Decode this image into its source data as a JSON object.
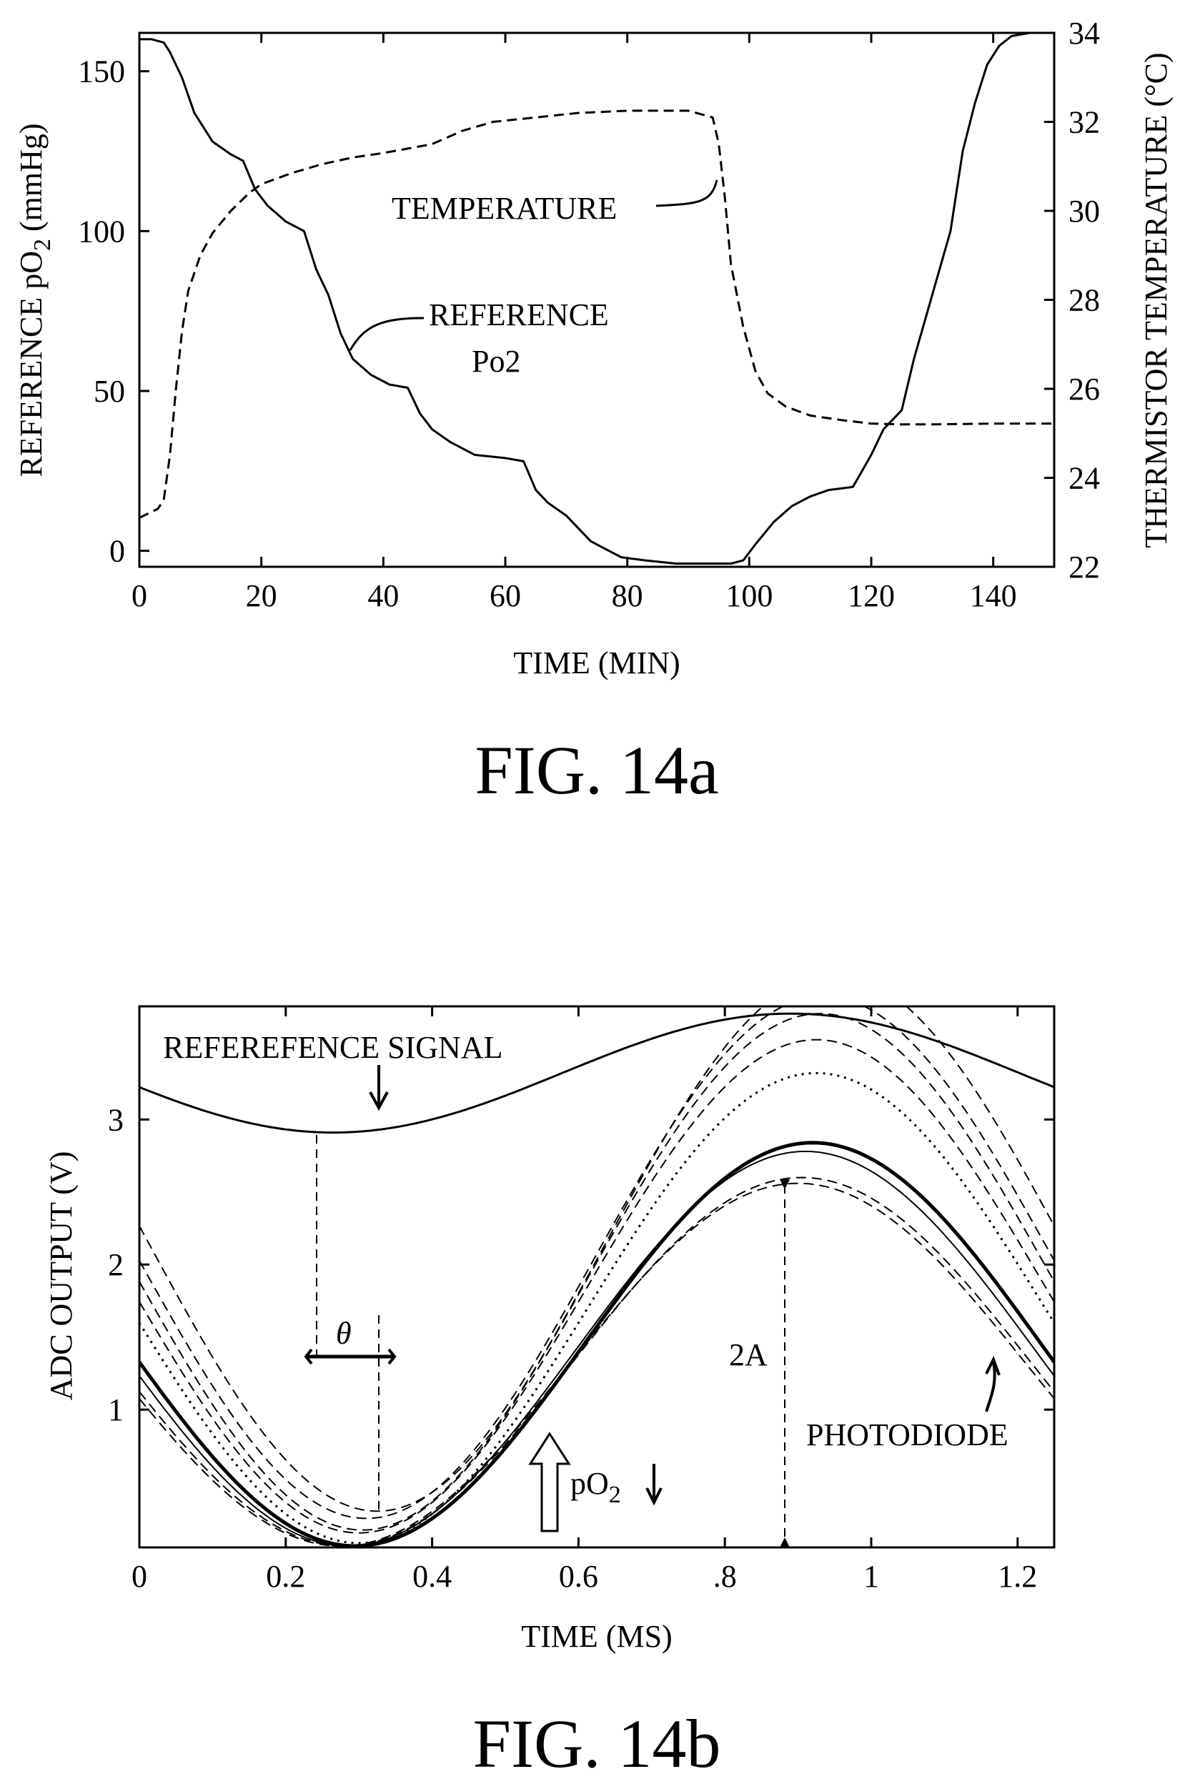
{
  "chart_data": [
    {
      "type": "line",
      "caption": "FIG. 14a",
      "xlabel": "TIME (MIN)",
      "ylabel": "REFERENCE pO",
      "ylabel_sub": "2",
      "ylabel_unit": "(mmHg)",
      "y2label": "THERMISTOR TEMPERATURE (°C)",
      "xlim": [
        0,
        150
      ],
      "ylim": [
        -5,
        162
      ],
      "y2lim": [
        22,
        34
      ],
      "xticks": [
        0,
        20,
        40,
        60,
        80,
        100,
        120,
        140
      ],
      "xtick_labels": [
        "0",
        "20",
        "40",
        "60",
        "80",
        "100",
        "120",
        "140"
      ],
      "yticks": [
        0,
        50,
        100,
        150
      ],
      "ytick_labels": [
        "0",
        "50",
        "100",
        "150"
      ],
      "y2ticks": [
        22,
        24,
        26,
        28,
        30,
        32,
        34
      ],
      "y2tick_labels": [
        "22",
        "24",
        "26",
        "28",
        "30",
        "32",
        "34"
      ],
      "annotations": [
        {
          "lines": [
            "TEMPERATURE"
          ],
          "target": "temperature"
        },
        {
          "lines": [
            "REFERENCE",
            "Po2"
          ],
          "target": "reference"
        }
      ],
      "series": [
        {
          "key": "reference",
          "axis": "left",
          "style": "solid",
          "x": [
            0,
            2,
            4,
            5,
            7,
            9,
            12,
            15,
            17,
            19,
            21,
            24,
            27,
            29,
            31,
            33,
            35,
            38,
            41,
            44,
            46,
            48,
            51,
            55,
            60,
            63,
            65,
            67,
            70,
            72,
            74,
            76,
            79,
            83,
            88,
            93,
            97,
            99,
            101,
            104,
            107,
            110,
            113,
            117,
            120,
            122,
            125,
            127,
            130,
            133,
            135,
            137,
            139,
            141,
            143,
            146,
            150
          ],
          "y": [
            160,
            160,
            159,
            156,
            148,
            137,
            128,
            124,
            122,
            113,
            108,
            103,
            100,
            88,
            80,
            68,
            60,
            55,
            52,
            51,
            43,
            38,
            34,
            30,
            29,
            28,
            19,
            15,
            11,
            7,
            3,
            1,
            -2,
            -3,
            -4,
            -4,
            -4,
            -3,
            2,
            9,
            14,
            17,
            19,
            20,
            30,
            38,
            44,
            60,
            80,
            100,
            125,
            140,
            152,
            158,
            161,
            162,
            162
          ]
        },
        {
          "key": "temperature",
          "axis": "right",
          "style": "dashed",
          "x": [
            0,
            3,
            4,
            5,
            6,
            7,
            8,
            10,
            12,
            15,
            18,
            20,
            25,
            30,
            35,
            40,
            44,
            48,
            53,
            58,
            65,
            72,
            80,
            90,
            94,
            95,
            96,
            97,
            99,
            101,
            103,
            106,
            110,
            115,
            120,
            125,
            130,
            140,
            150
          ],
          "y": [
            23.1,
            23.3,
            23.5,
            24.5,
            26,
            27.3,
            28.2,
            29,
            29.5,
            30,
            30.4,
            30.6,
            30.85,
            31.05,
            31.2,
            31.3,
            31.4,
            31.5,
            31.8,
            32.0,
            32.1,
            32.2,
            32.25,
            32.25,
            32.1,
            31.5,
            30.3,
            28.8,
            27.4,
            26.4,
            25.9,
            25.6,
            25.4,
            25.3,
            25.22,
            25.2,
            25.2,
            25.22,
            25.22
          ]
        }
      ]
    },
    {
      "type": "line",
      "caption": "FIG. 14b",
      "xlabel": "TIME (MS)",
      "ylabel": "ADC OUTPUT  (V)",
      "xlim": [
        0,
        1.25
      ],
      "ylim": [
        0.05,
        3.78
      ],
      "xticks": [
        0,
        0.2,
        0.4,
        0.6,
        0.8,
        1,
        1.2
      ],
      "xtick_labels": [
        "0",
        "0.2",
        "0.4",
        "0.6",
        ".8",
        "1",
        "1.2"
      ],
      "yticks": [
        1,
        2,
        3
      ],
      "ytick_labels": [
        "1",
        "2",
        "3"
      ],
      "annotations": [
        {
          "lines": [
            "REFEREFENCE SIGNAL"
          ],
          "target": "reference signal"
        },
        {
          "lines": [
            "PHOTODIODE"
          ],
          "target": "photodiode"
        },
        {
          "lines": [
            "θ"
          ],
          "target": "phase shift"
        },
        {
          "lines": [
            "2A"
          ],
          "target": "peak-to-peak amplitude"
        },
        {
          "lines": [
            "pO",
            "2"
          ],
          "target": "pO2 arrows"
        }
      ],
      "series": [
        {
          "style": "solid",
          "width": 3,
          "kind": "reference",
          "offset": 3.32,
          "amp": 0.41,
          "period": 1.25,
          "tmin": 0.265
        },
        {
          "style": "dashed",
          "width": 2,
          "kind": "photodiode",
          "offset": 2.15,
          "amp": 1.85,
          "period": 1.25,
          "tmin": 0.325
        },
        {
          "style": "dashed",
          "width": 2,
          "kind": "photodiode",
          "offset": 2.05,
          "amp": 1.8,
          "period": 1.25,
          "tmin": 0.31
        },
        {
          "style": "dashed",
          "width": 2,
          "kind": "photodiode",
          "offset": 1.95,
          "amp": 1.78,
          "period": 1.25,
          "tmin": 0.305
        },
        {
          "style": "dashed",
          "width": 2,
          "kind": "photodiode",
          "offset": 1.85,
          "amp": 1.7,
          "period": 1.25,
          "tmin": 0.3
        },
        {
          "style": "dotted",
          "width": 3,
          "kind": "photodiode",
          "offset": 1.7,
          "amp": 1.62,
          "period": 1.25,
          "tmin": 0.3
        },
        {
          "style": "solid",
          "width": 5,
          "kind": "photodiode",
          "offset": 1.45,
          "amp": 1.39,
          "period": 1.25,
          "tmin": 0.295
        },
        {
          "style": "solid",
          "width": 2,
          "kind": "photodiode",
          "offset": 1.42,
          "amp": 1.36,
          "period": 1.25,
          "tmin": 0.285
        },
        {
          "style": "dashed",
          "width": 2,
          "kind": "photodiode",
          "offset": 1.33,
          "amp": 1.27,
          "period": 1.25,
          "tmin": 0.28
        },
        {
          "style": "dashed",
          "width": 2,
          "kind": "photodiode",
          "offset": 1.31,
          "amp": 1.25,
          "period": 1.25,
          "tmin": 0.275
        }
      ]
    }
  ]
}
